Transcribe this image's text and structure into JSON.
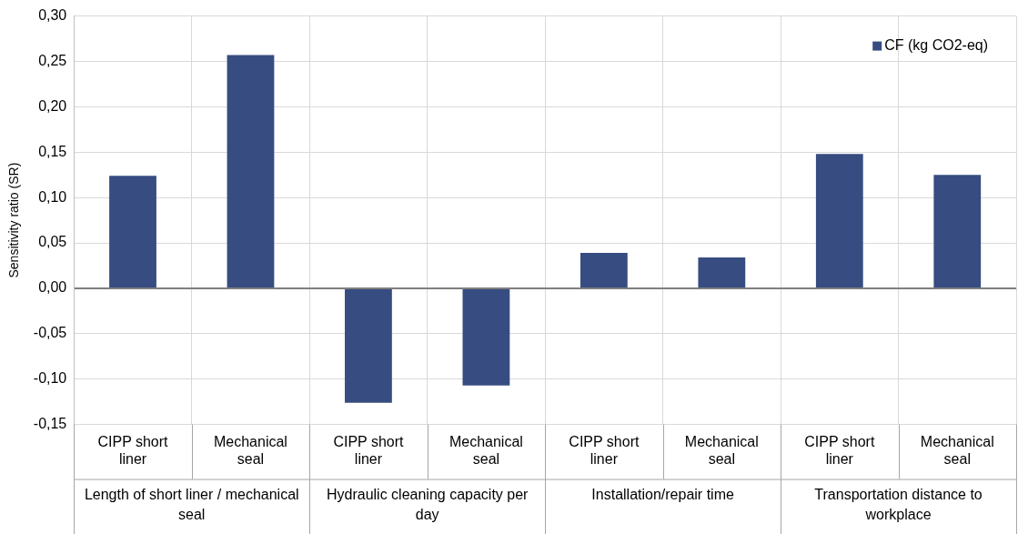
{
  "chart_data": {
    "type": "bar",
    "ylabel": "Sensitivity ratio (SR)",
    "categories": [
      "CIPP short liner",
      "Mechanical seal",
      "CIPP short liner",
      "Mechanical seal",
      "CIPP short liner",
      "Mechanical seal",
      "CIPP short liner",
      "Mechanical seal"
    ],
    "series": [
      {
        "name": "CF (kg CO2-eq)",
        "color": "#374c80",
        "values": [
          0.124,
          0.257,
          -0.126,
          -0.107,
          0.039,
          0.034,
          0.148,
          0.125
        ]
      }
    ],
    "ylim": [
      -0.15,
      0.3
    ],
    "yticks": [
      {
        "value": -0.15,
        "label": "-0,15"
      },
      {
        "value": -0.1,
        "label": "-0,10"
      },
      {
        "value": -0.05,
        "label": "-0,05"
      },
      {
        "value": 0,
        "label": "0,00"
      },
      {
        "value": 0.05,
        "label": "0,05"
      },
      {
        "value": 0.1,
        "label": "0,10"
      },
      {
        "value": 0.15,
        "label": "0,15"
      },
      {
        "value": 0.2,
        "label": "0,20"
      },
      {
        "value": 0.25,
        "label": "0,25"
      },
      {
        "value": 0.3,
        "label": "0,30"
      }
    ],
    "annotations": [
      "Length of short liner / mechanical seal",
      "Hydraulic cleaning capacity per day",
      "Installation/repair time",
      "Transportation distance to workplace"
    ],
    "grid": true,
    "legend": "top right"
  }
}
